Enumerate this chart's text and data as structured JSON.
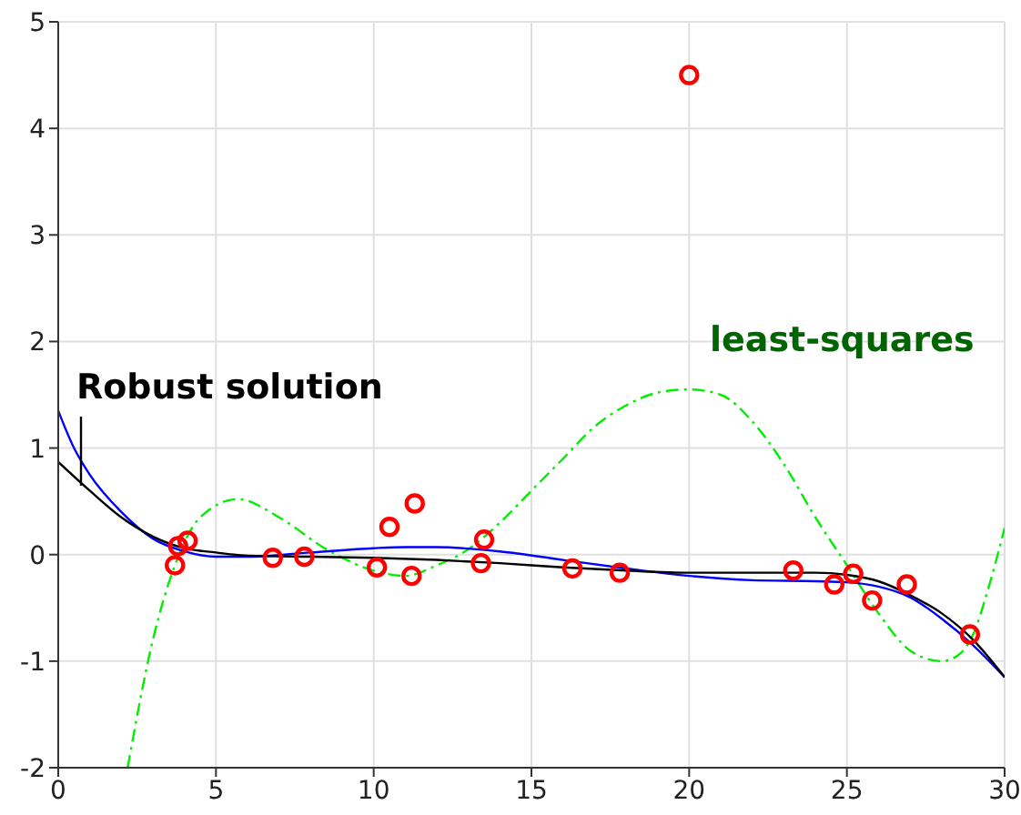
{
  "chart_data": {
    "type": "scatter",
    "xlim": [
      0,
      30
    ],
    "ylim": [
      -2,
      5
    ],
    "xticks": [
      0,
      5,
      10,
      15,
      20,
      25,
      30
    ],
    "yticks": [
      -2,
      -1,
      0,
      1,
      2,
      3,
      4,
      5
    ],
    "grid": true,
    "legend": false,
    "annotations": [
      "Robust solution",
      "least-squares"
    ],
    "series": [
      {
        "type": "line",
        "color": "#00ee00",
        "line_style": "dashed",
        "marker": "none",
        "x": [
          2.2,
          3,
          3.7,
          4.5,
          5.7,
          7,
          8.5,
          10,
          11,
          12,
          13,
          14,
          15,
          16,
          17,
          18,
          19,
          20,
          21,
          22,
          23,
          24,
          25,
          26,
          27,
          28,
          28.5,
          29,
          29.5,
          30
        ],
        "values": [
          -2,
          -0.8,
          -0.1,
          0.35,
          0.52,
          0.35,
          0.05,
          -0.15,
          -0.2,
          -0.1,
          0.05,
          0.3,
          0.6,
          0.9,
          1.2,
          1.4,
          1.52,
          1.55,
          1.5,
          1.25,
          0.85,
          0.35,
          -0.1,
          -0.55,
          -0.9,
          -1.0,
          -0.95,
          -0.75,
          -0.3,
          0.25
        ]
      },
      {
        "type": "line",
        "color": "#0000ff",
        "line_style": "solid",
        "marker": "none",
        "x": [
          0,
          0.5,
          1,
          2,
          3,
          4,
          5,
          6,
          8,
          10,
          11,
          12,
          14,
          16,
          18,
          20,
          22,
          24,
          25,
          26,
          27,
          28,
          29,
          30
        ],
        "values": [
          1.35,
          1.0,
          0.75,
          0.4,
          0.15,
          0.03,
          -0.02,
          -0.02,
          0.02,
          0.06,
          0.07,
          0.07,
          0.03,
          -0.05,
          -0.13,
          -0.2,
          -0.24,
          -0.25,
          -0.26,
          -0.3,
          -0.4,
          -0.6,
          -0.85,
          -1.15
        ]
      },
      {
        "type": "line",
        "color": "#000000",
        "line_style": "solid",
        "marker": "none",
        "x": [
          0,
          1,
          2,
          3,
          4,
          5,
          6,
          8,
          10,
          12,
          14,
          16,
          18,
          20,
          22,
          24,
          25,
          26,
          27,
          28,
          29,
          30
        ],
        "values": [
          0.87,
          0.6,
          0.35,
          0.17,
          0.06,
          0.02,
          -0.01,
          -0.02,
          -0.03,
          -0.05,
          -0.08,
          -0.12,
          -0.15,
          -0.17,
          -0.17,
          -0.17,
          -0.19,
          -0.25,
          -0.38,
          -0.55,
          -0.8,
          -1.15
        ]
      },
      {
        "color": "#ff0000",
        "marker": "circle",
        "x": [
          3.7,
          3.8,
          4.1,
          6.8,
          7.8,
          10.1,
          10.5,
          11.2,
          11.3,
          13.4,
          13.5,
          16.3,
          17.8,
          20,
          23.3,
          24.6,
          25.2,
          25.8,
          26.9,
          28.9
        ],
        "values": [
          -0.1,
          0.08,
          0.13,
          -0.03,
          -0.02,
          -0.12,
          0.26,
          -0.2,
          0.48,
          -0.08,
          0.14,
          -0.13,
          -0.17,
          4.5,
          -0.15,
          -0.28,
          -0.18,
          -0.43,
          -0.28,
          -0.75
        ]
      }
    ]
  }
}
